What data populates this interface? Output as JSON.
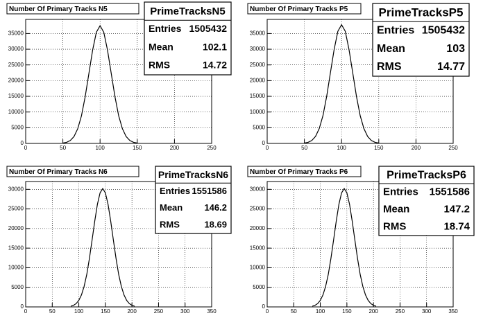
{
  "chart_data": [
    {
      "type": "line",
      "title": "Number Of Primary Tracks N5",
      "color": "#000000",
      "grid": true,
      "x": [
        50,
        55,
        60,
        65,
        70,
        75,
        80,
        85,
        90,
        95,
        100,
        105,
        110,
        115,
        120,
        125,
        130,
        135,
        140,
        145,
        150
      ],
      "values": [
        115,
        340,
        930,
        2200,
        4700,
        8800,
        14900,
        22300,
        29700,
        35400,
        37500,
        35400,
        29700,
        22300,
        14900,
        8800,
        4700,
        2200,
        930,
        340,
        115
      ],
      "xlim": [
        0,
        250
      ],
      "xticks": [
        0,
        50,
        100,
        150,
        200,
        250
      ],
      "ylim": [
        0,
        39500
      ],
      "yticks": [
        0,
        5000,
        10000,
        15000,
        20000,
        25000,
        30000,
        35000
      ],
      "stats": {
        "title": "PrimeTracksN5",
        "rows": [
          {
            "label": "Entries",
            "value": 1505432
          },
          {
            "label": "Mean",
            "value": 102.1
          },
          {
            "label": "RMS",
            "value": 14.72
          }
        ]
      }
    },
    {
      "type": "line",
      "title": "Number Of Primary Tracks P5",
      "color": "#000000",
      "grid": true,
      "x": [
        50,
        55,
        60,
        65,
        70,
        75,
        80,
        85,
        90,
        95,
        100,
        105,
        110,
        115,
        120,
        125,
        130,
        135,
        140,
        145,
        150
      ],
      "values": [
        115,
        340,
        940,
        2220,
        4740,
        8870,
        15000,
        22500,
        29900,
        35700,
        37800,
        35700,
        29900,
        22500,
        15000,
        8870,
        4740,
        2220,
        940,
        340,
        115
      ],
      "xlim": [
        0,
        250
      ],
      "xticks": [
        0,
        50,
        100,
        150,
        200,
        250
      ],
      "ylim": [
        0,
        39500
      ],
      "yticks": [
        0,
        5000,
        10000,
        15000,
        20000,
        25000,
        30000,
        35000
      ],
      "stats": {
        "title": "PrimeTracksP5",
        "rows": [
          {
            "label": "Entries",
            "value": 1505432
          },
          {
            "label": "Mean",
            "value": 103
          },
          {
            "label": "RMS",
            "value": 14.77
          }
        ]
      }
    },
    {
      "type": "line",
      "title": "Number Of Primary Tracks N6",
      "color": "#000000",
      "grid": true,
      "x": [
        85,
        90,
        95,
        100,
        105,
        110,
        115,
        120,
        125,
        130,
        135,
        140,
        145,
        150,
        155,
        160,
        165,
        170,
        175,
        180,
        185,
        190,
        195,
        200,
        205
      ],
      "values": [
        180,
        400,
        850,
        1680,
        3070,
        5250,
        8300,
        12400,
        17100,
        21900,
        26200,
        29100,
        30200,
        29100,
        26200,
        21900,
        17100,
        12400,
        8300,
        5250,
        3070,
        1680,
        850,
        400,
        180
      ],
      "xlim": [
        0,
        350
      ],
      "xticks": [
        0,
        50,
        100,
        150,
        200,
        250,
        300,
        350
      ],
      "ylim": [
        0,
        32000
      ],
      "yticks": [
        0,
        5000,
        10000,
        15000,
        20000,
        25000,
        30000
      ],
      "stats": {
        "title": "PrimeTracksN6",
        "rows": [
          {
            "label": "Entries",
            "value": 1551586
          },
          {
            "label": "Mean",
            "value": 146.2
          },
          {
            "label": "RMS",
            "value": 18.69
          }
        ]
      }
    },
    {
      "type": "line",
      "title": "Number Of Primary Tracks P6",
      "color": "#000000",
      "grid": true,
      "x": [
        85,
        90,
        95,
        100,
        105,
        110,
        115,
        120,
        125,
        130,
        135,
        140,
        145,
        150,
        155,
        160,
        165,
        170,
        175,
        180,
        185,
        190,
        195,
        200,
        205
      ],
      "values": [
        180,
        400,
        850,
        1680,
        3070,
        5250,
        8300,
        12400,
        17100,
        21900,
        26200,
        29100,
        30200,
        29100,
        26200,
        21900,
        17100,
        12400,
        8300,
        5250,
        3070,
        1680,
        850,
        400,
        180
      ],
      "xlim": [
        0,
        350
      ],
      "xticks": [
        0,
        50,
        100,
        150,
        200,
        250,
        300,
        350
      ],
      "ylim": [
        0,
        32000
      ],
      "yticks": [
        0,
        5000,
        10000,
        15000,
        20000,
        25000,
        30000
      ],
      "stats": {
        "title": "PrimeTracksP6",
        "rows": [
          {
            "label": "Entries",
            "value": 1551586
          },
          {
            "label": "Mean",
            "value": 147.2
          },
          {
            "label": "RMS",
            "value": 18.74
          }
        ]
      }
    }
  ]
}
